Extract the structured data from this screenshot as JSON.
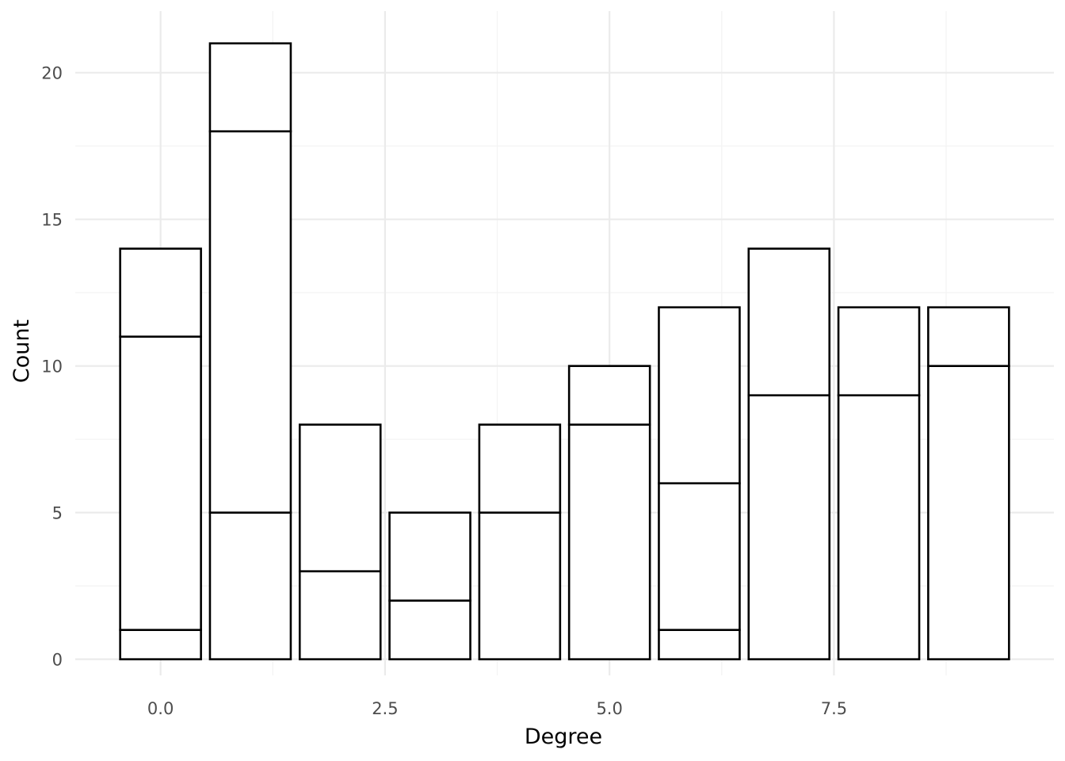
{
  "chart_data": {
    "type": "bar",
    "stacked": true,
    "xlabel": "Degree",
    "ylabel": "Count",
    "xlim": [
      -0.95,
      9.95
    ],
    "ylim": [
      -0.55,
      22.1
    ],
    "x_ticks": [
      0.0,
      2.5,
      5.0,
      7.5
    ],
    "x_tick_labels": [
      "0.0",
      "2.5",
      "5.0",
      "7.5"
    ],
    "y_ticks": [
      0,
      5,
      10,
      15,
      20
    ],
    "y_tick_labels": [
      "0",
      "5",
      "10",
      "15",
      "20"
    ],
    "grid": true,
    "legend": "none",
    "x": [
      0,
      1,
      2,
      3,
      4,
      5,
      6,
      7,
      8,
      9
    ],
    "stacks": [
      [
        1,
        10,
        3
      ],
      [
        5,
        13,
        3
      ],
      [
        3,
        5
      ],
      [
        2,
        3
      ],
      [
        5,
        3
      ],
      [
        8,
        2
      ],
      [
        1,
        5,
        6
      ],
      [
        9,
        5
      ],
      [
        9,
        3
      ],
      [
        10,
        2
      ]
    ],
    "totals": [
      14,
      21,
      8,
      5,
      8,
      10,
      12,
      14,
      12,
      12
    ],
    "colors": {
      "bar_fill": "#ffffff",
      "bar_outline": "#000000",
      "grid": "#ebebeb",
      "tick_text": "#4d4d4d",
      "title_text": "#000000"
    }
  }
}
